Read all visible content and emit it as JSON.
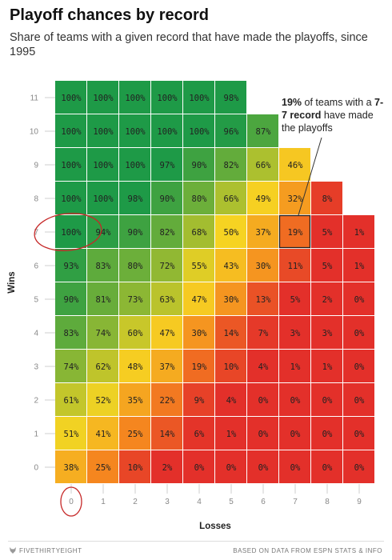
{
  "title": "Playoff chances by record",
  "subtitle": "Share of teams with a given record that have made the playoffs, since 1995",
  "annotation": {
    "pct": "19%",
    "text1": " of teams with a ",
    "record": "7-7 record",
    "text2": " have made the playoffs"
  },
  "footer": {
    "brand": "FIVETHIRTYEIGHT",
    "source": "BASED ON DATA FROM ESPN STATS & INFO"
  },
  "colors": {
    "green": "#1e9a47",
    "yellow": "#f6d322",
    "orange": "#f5861f",
    "red": "#e3302a",
    "annotation_red": "#c62828"
  },
  "chart_data": {
    "type": "heatmap",
    "xlabel": "Losses",
    "ylabel": "Wins",
    "x_ticks": [
      "0",
      "1",
      "2",
      "3",
      "4",
      "5",
      "6",
      "7",
      "8",
      "9"
    ],
    "y_ticks": [
      "0",
      "1",
      "2",
      "3",
      "4",
      "5",
      "6",
      "7",
      "8",
      "9",
      "10",
      "11"
    ],
    "highlight": {
      "wins": 7,
      "losses": 7
    },
    "circled": [
      {
        "wins": 7,
        "losses": 0
      },
      {
        "axis": "x",
        "tick": "0"
      }
    ],
    "rows": [
      {
        "wins": 11,
        "cells": [
          "100%",
          "100%",
          "100%",
          "100%",
          "100%",
          "98%"
        ]
      },
      {
        "wins": 10,
        "cells": [
          "100%",
          "100%",
          "100%",
          "100%",
          "100%",
          "96%",
          "87%"
        ]
      },
      {
        "wins": 9,
        "cells": [
          "100%",
          "100%",
          "100%",
          "97%",
          "90%",
          "82%",
          "66%",
          "46%"
        ]
      },
      {
        "wins": 8,
        "cells": [
          "100%",
          "100%",
          "98%",
          "90%",
          "80%",
          "66%",
          "49%",
          "32%",
          "8%"
        ]
      },
      {
        "wins": 7,
        "cells": [
          "100%",
          "94%",
          "90%",
          "82%",
          "68%",
          "50%",
          "37%",
          "19%",
          "5%",
          "1%"
        ]
      },
      {
        "wins": 6,
        "cells": [
          "93%",
          "83%",
          "80%",
          "72%",
          "55%",
          "43%",
          "30%",
          "11%",
          "5%",
          "1%"
        ]
      },
      {
        "wins": 5,
        "cells": [
          "90%",
          "81%",
          "73%",
          "63%",
          "47%",
          "30%",
          "13%",
          "5%",
          "2%",
          "0%"
        ]
      },
      {
        "wins": 4,
        "cells": [
          "83%",
          "74%",
          "60%",
          "47%",
          "30%",
          "14%",
          "7%",
          "3%",
          "3%",
          "0%"
        ]
      },
      {
        "wins": 3,
        "cells": [
          "74%",
          "62%",
          "48%",
          "37%",
          "19%",
          "10%",
          "4%",
          "1%",
          "1%",
          "0%"
        ]
      },
      {
        "wins": 2,
        "cells": [
          "61%",
          "52%",
          "35%",
          "22%",
          "9%",
          "4%",
          "0%",
          "0%",
          "0%",
          "0%"
        ]
      },
      {
        "wins": 1,
        "cells": [
          "51%",
          "41%",
          "25%",
          "14%",
          "6%",
          "1%",
          "0%",
          "0%",
          "0%",
          "0%"
        ]
      },
      {
        "wins": 0,
        "cells": [
          "38%",
          "25%",
          "10%",
          "2%",
          "0%",
          "0%",
          "0%",
          "0%",
          "0%",
          "0%"
        ]
      }
    ]
  }
}
